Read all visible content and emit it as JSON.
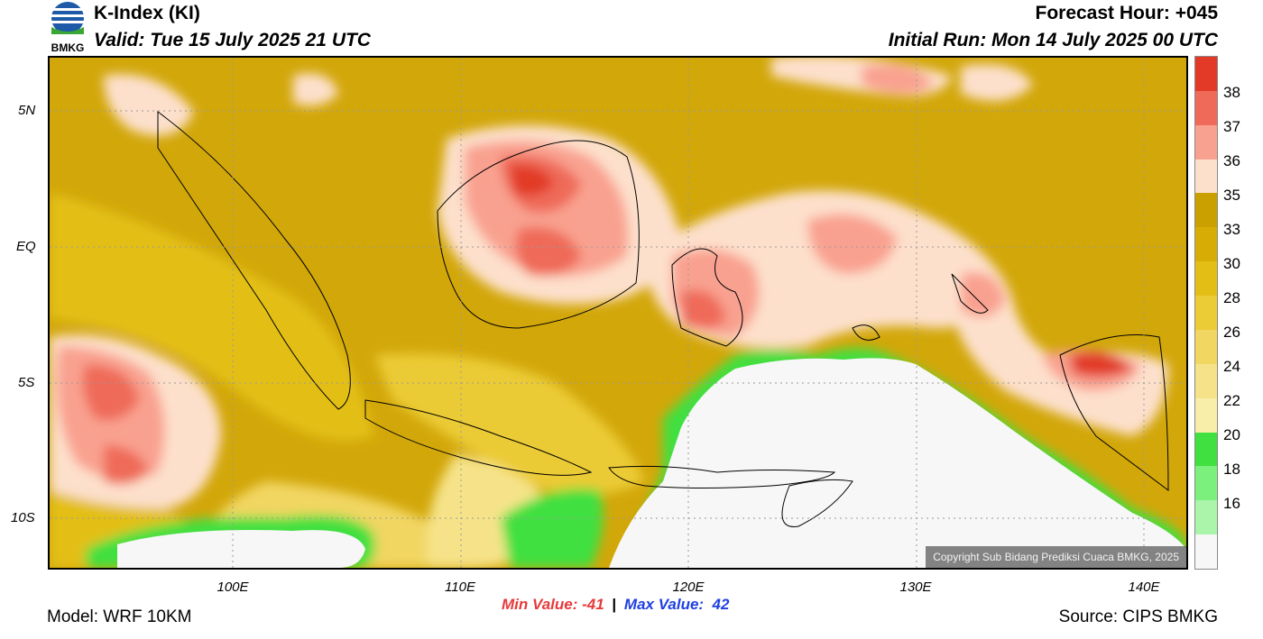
{
  "header": {
    "title": "K-Index (KI)",
    "valid": "Valid: Tue 15 July 2025 21 UTC",
    "forecast_hour": "Forecast Hour: +045",
    "initial_run": "Initial Run: Mon 14 July 2025 00 UTC",
    "logo_text": "BMKG"
  },
  "map": {
    "lat_labels": [
      "5N",
      "EQ",
      "5S",
      "10S"
    ],
    "lon_labels": [
      "100E",
      "110E",
      "120E",
      "130E",
      "140E"
    ],
    "copyright": "Copyright Sub Bidang Prediksi Cuaca BMKG, 2025"
  },
  "colorbar": {
    "labels": [
      "38",
      "37",
      "36",
      "35",
      "33",
      "30",
      "28",
      "26",
      "24",
      "22",
      "20",
      "18",
      "16"
    ],
    "colors": [
      "#e23a26",
      "#ef6a58",
      "#f9a190",
      "#fde0cc",
      "#caa000",
      "#d7ad05",
      "#e3bf16",
      "#ebcb36",
      "#f1d662",
      "#f6e389",
      "#f9edaa",
      "#40e040",
      "#7cf07c",
      "#aaf5aa",
      "#f7f7f7"
    ]
  },
  "stats": {
    "min": "Min Value: -41",
    "separator": "|",
    "max": "Max Value:  42"
  },
  "footer": {
    "model": "Model: WRF 10KM",
    "source": "Source: CIPS BMKG"
  }
}
